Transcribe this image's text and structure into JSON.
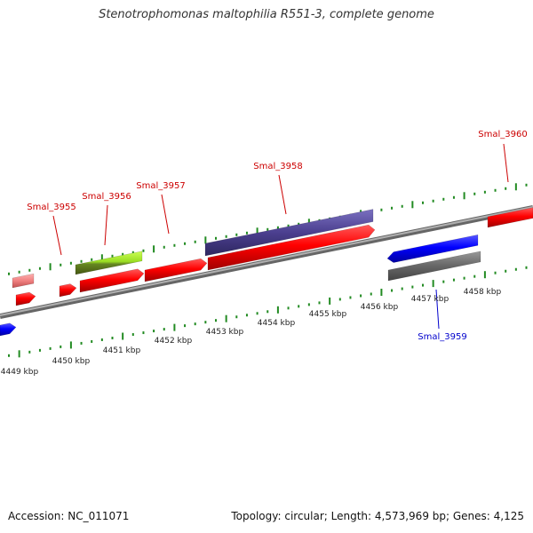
{
  "title": "Stenotrophomonas maltophilia R551-3, complete genome",
  "footer": {
    "accession": "Accession: NC_011071",
    "summary": "Topology: circular; Length: 4,573,969 bp; Genes: 4,125"
  },
  "axis_labels": [
    "4449 kbp",
    "4450 kbp",
    "4451 kbp",
    "4452 kbp",
    "4453 kbp",
    "4454 kbp",
    "4455 kbp",
    "4456 kbp",
    "4457 kbp",
    "4458 kbp"
  ],
  "genes": [
    {
      "name": "Smal_3955",
      "strand": "+",
      "color": "#cc0000"
    },
    {
      "name": "Smal_3956",
      "strand": "+",
      "color": "#cc0000"
    },
    {
      "name": "Smal_3957",
      "strand": "+",
      "color": "#cc0000"
    },
    {
      "name": "Smal_3958",
      "strand": "+",
      "color": "#cc0000"
    },
    {
      "name": "Smal_3959",
      "strand": "-",
      "color": "#0000cc"
    },
    {
      "name": "Smal_3960",
      "strand": "+",
      "color": "#cc0000"
    }
  ],
  "colors": {
    "forward_gene": "#ff0000",
    "reverse_gene": "#0000ff",
    "ticks": "#228b22",
    "backbone": "#888888",
    "rna_pale": "#f08080",
    "lime_feature": "#99dd22",
    "purple_feature": "#4b3f8f",
    "gray_feature": "#666666"
  }
}
